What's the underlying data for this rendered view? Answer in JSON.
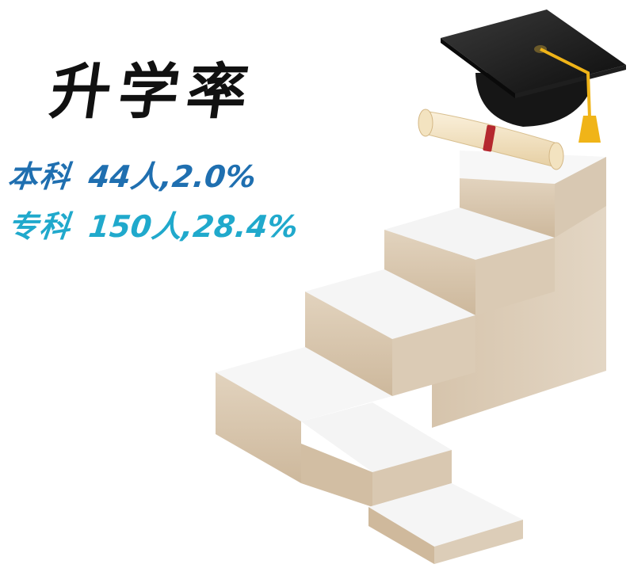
{
  "title": "升学率",
  "stats": [
    {
      "label": "本科",
      "value": "44人,2.0%",
      "color": "#1f6fb0"
    },
    {
      "label": "专科",
      "value": "150人,28.4%",
      "color": "#20a9cc"
    }
  ],
  "illustration": {
    "icons": [
      "stairs-icon",
      "graduation-cap-icon",
      "diploma-scroll-icon"
    ],
    "colors": {
      "stair_side": "#d9c9b5",
      "stair_top": "#f6f6f6",
      "cap": "#1b1b1b",
      "tassel": "#f0b418",
      "ribbon": "#b5282e"
    }
  }
}
